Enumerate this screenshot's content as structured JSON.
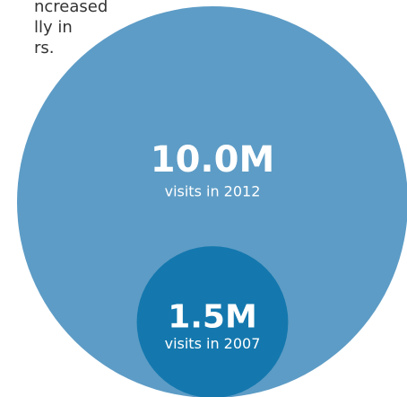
{
  "chart_data": {
    "type": "bubble",
    "annotation_lines": [
      "ncreased",
      "lly in",
      "rs."
    ],
    "value_labels": [
      "10.0M",
      "1.5M"
    ],
    "values": [
      10000000,
      1500000
    ],
    "labels": [
      "visits in 2012",
      "visits in 2007"
    ],
    "colors": [
      "#5d9cc6",
      "#1478ae"
    ]
  }
}
